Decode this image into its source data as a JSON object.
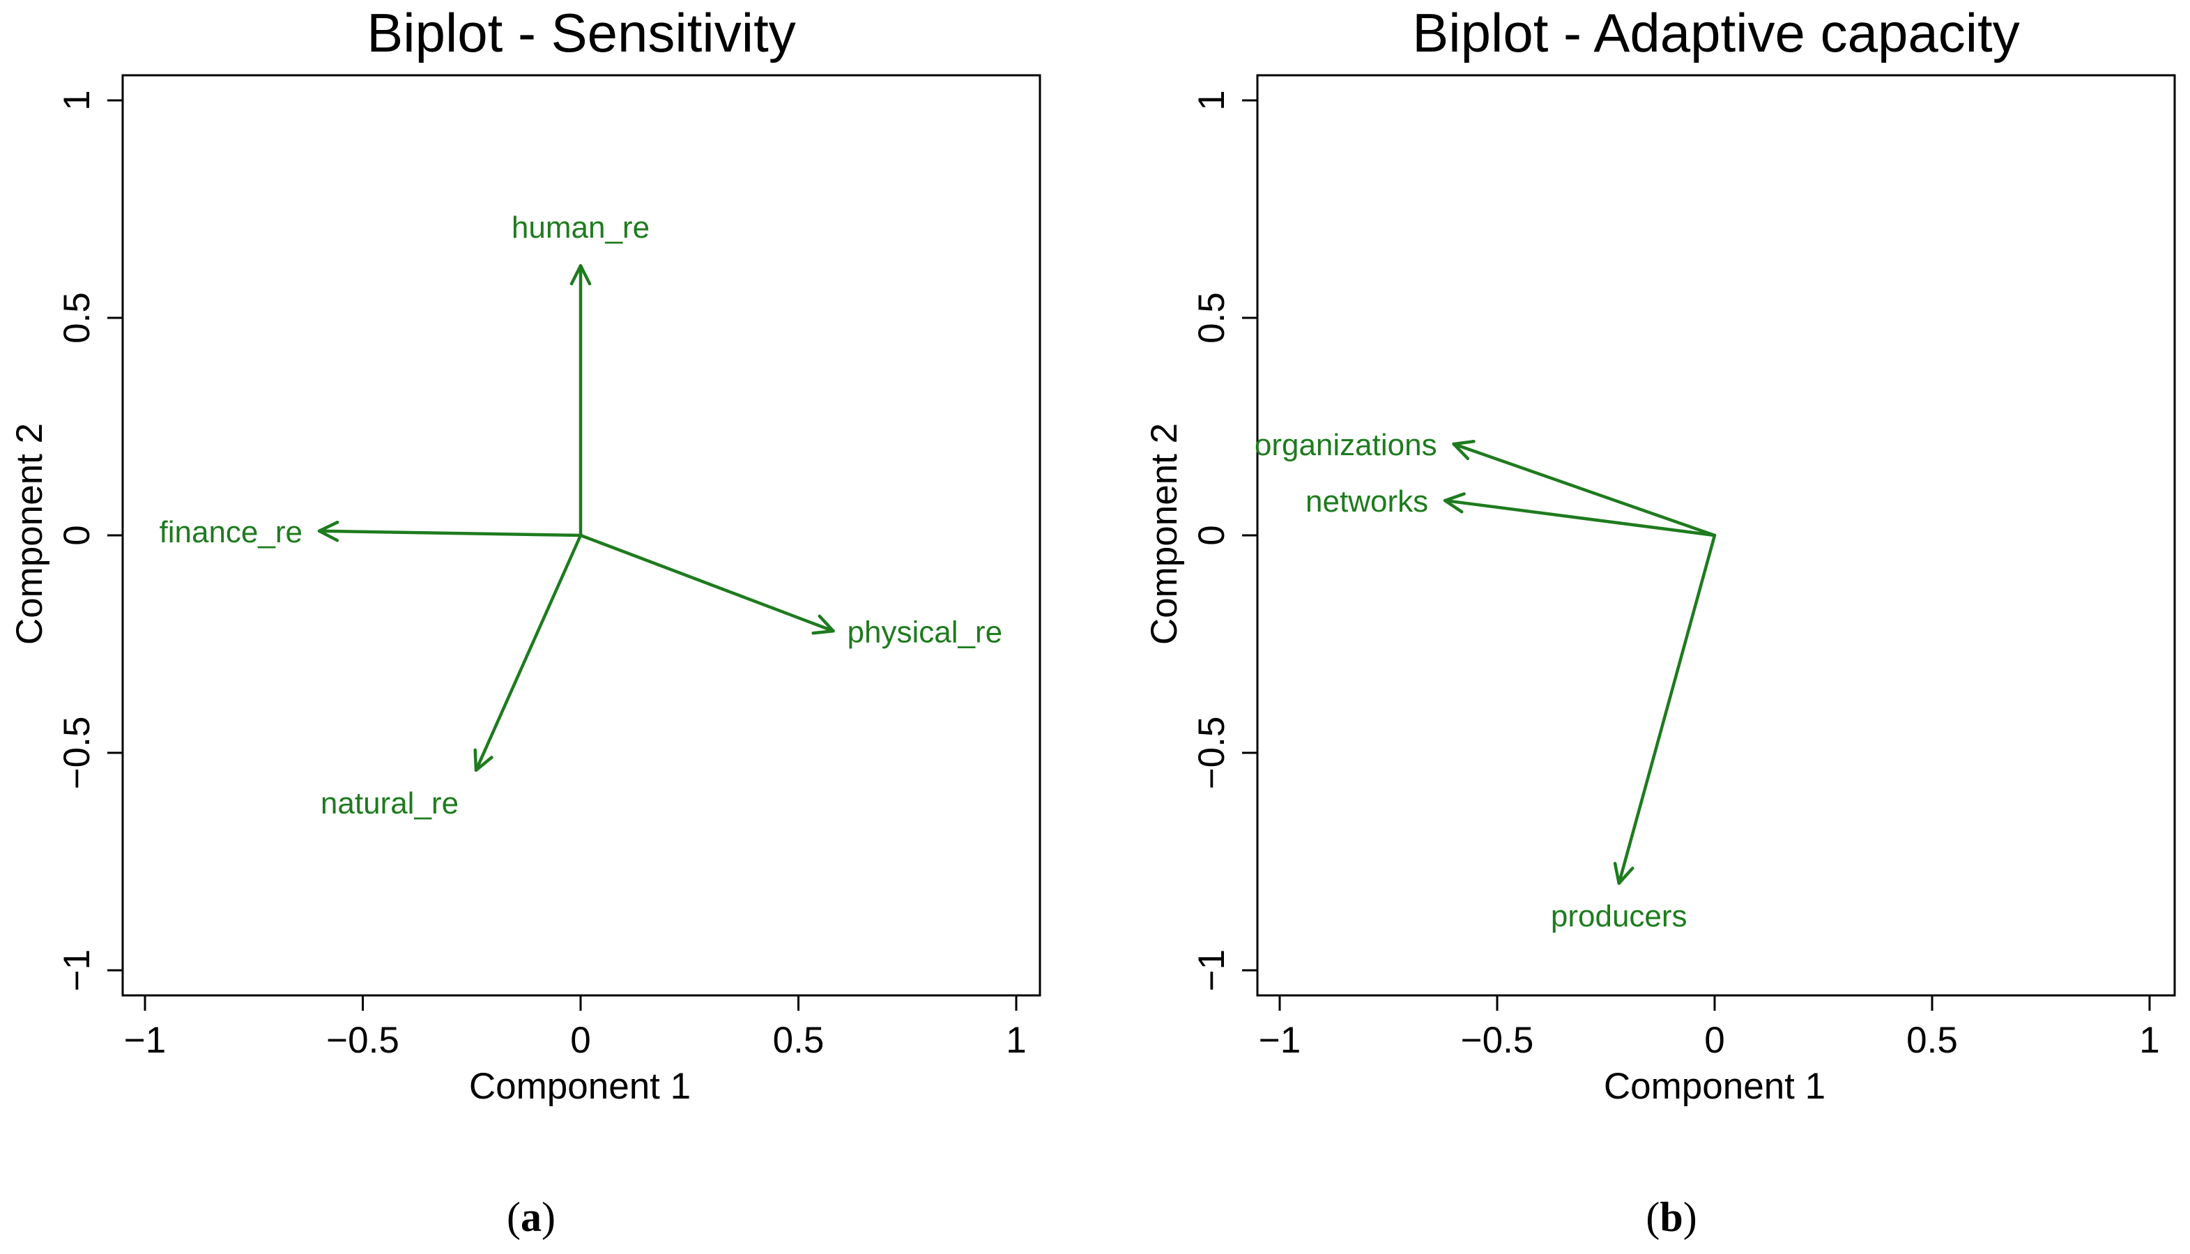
{
  "colors": {
    "vector": "#1e7b1e",
    "axis": "#000000",
    "background": "#ffffff"
  },
  "chart_data": [
    {
      "type": "biplot",
      "title": "Biplot - Sensitivity",
      "xlabel": "Component 1",
      "ylabel": "Component 2",
      "xlim": [
        -1,
        1
      ],
      "ylim": [
        -1,
        1
      ],
      "xticks": [
        -1,
        -0.5,
        0,
        0.5,
        1
      ],
      "yticks": [
        -1,
        -0.5,
        0,
        0.5,
        1
      ],
      "xtick_labels": [
        "−1",
        "−0.5",
        "0",
        "0.5",
        "1"
      ],
      "ytick_labels": [
        "−1",
        "−0.5",
        "0",
        "0.5",
        "1"
      ],
      "panel_label": "a",
      "vectors": [
        {
          "name": "human_re",
          "x": 0.0,
          "y": 0.62
        },
        {
          "name": "finance_re",
          "x": -0.6,
          "y": 0.01
        },
        {
          "name": "physical_re",
          "x": 0.58,
          "y": -0.22
        },
        {
          "name": "natural_re",
          "x": -0.24,
          "y": -0.54
        }
      ]
    },
    {
      "type": "biplot",
      "title": "Biplot - Adaptive capacity",
      "xlabel": "Component 1",
      "ylabel": "Component 2",
      "xlim": [
        -1,
        1
      ],
      "ylim": [
        -1,
        1
      ],
      "xticks": [
        -1,
        -0.5,
        0,
        0.5,
        1
      ],
      "yticks": [
        -1,
        -0.5,
        0,
        0.5,
        1
      ],
      "xtick_labels": [
        "−1",
        "−0.5",
        "0",
        "0.5",
        "1"
      ],
      "ytick_labels": [
        "−1",
        "−0.5",
        "0",
        "0.5",
        "1"
      ],
      "panel_label": "b",
      "vectors": [
        {
          "name": "organizations",
          "x": -0.6,
          "y": 0.21
        },
        {
          "name": "networks",
          "x": -0.62,
          "y": 0.08
        },
        {
          "name": "producers",
          "x": -0.22,
          "y": -0.8
        }
      ]
    }
  ]
}
